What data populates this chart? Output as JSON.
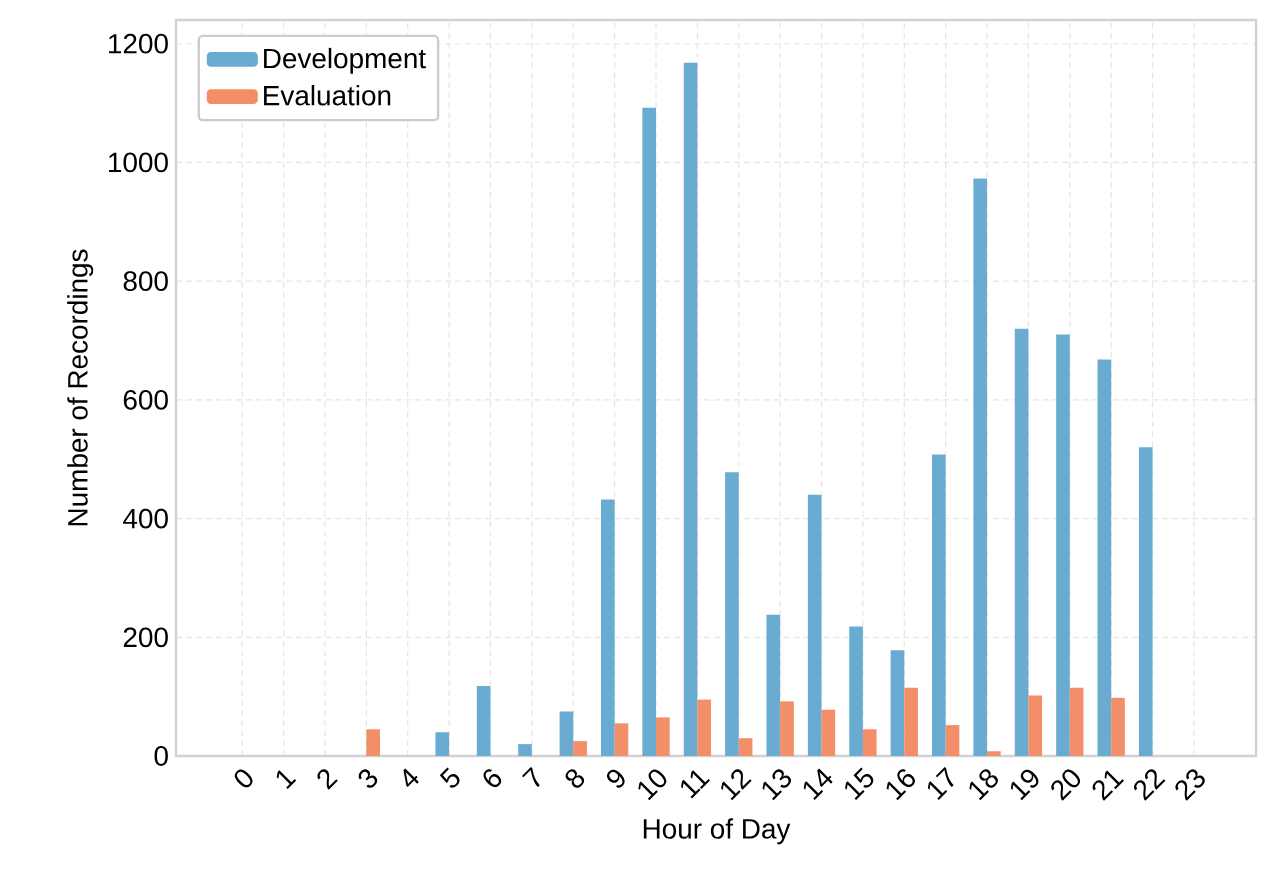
{
  "chart_data": {
    "type": "bar",
    "xlabel": "Hour of Day",
    "ylabel": "Number of Recordings",
    "categories": [
      "0",
      "1",
      "2",
      "3",
      "4",
      "5",
      "6",
      "7",
      "8",
      "9",
      "10",
      "11",
      "12",
      "13",
      "14",
      "15",
      "16",
      "17",
      "18",
      "19",
      "20",
      "21",
      "22",
      "23"
    ],
    "series": [
      {
        "name": "Development",
        "color": "#6aabd2",
        "values": [
          0,
          0,
          0,
          0,
          0,
          40,
          118,
          20,
          75,
          432,
          1092,
          1168,
          478,
          238,
          440,
          218,
          178,
          508,
          973,
          720,
          710,
          668,
          520,
          0
        ]
      },
      {
        "name": "Evaluation",
        "color": "#f28e68",
        "values": [
          0,
          0,
          0,
          45,
          0,
          0,
          0,
          0,
          25,
          55,
          65,
          95,
          30,
          92,
          78,
          45,
          115,
          52,
          8,
          102,
          115,
          98,
          0,
          0
        ]
      }
    ],
    "ylim": [
      0,
      1240
    ],
    "yticks": [
      0,
      200,
      400,
      600,
      800,
      1000,
      1200
    ],
    "grid": true,
    "legend": "top left"
  }
}
